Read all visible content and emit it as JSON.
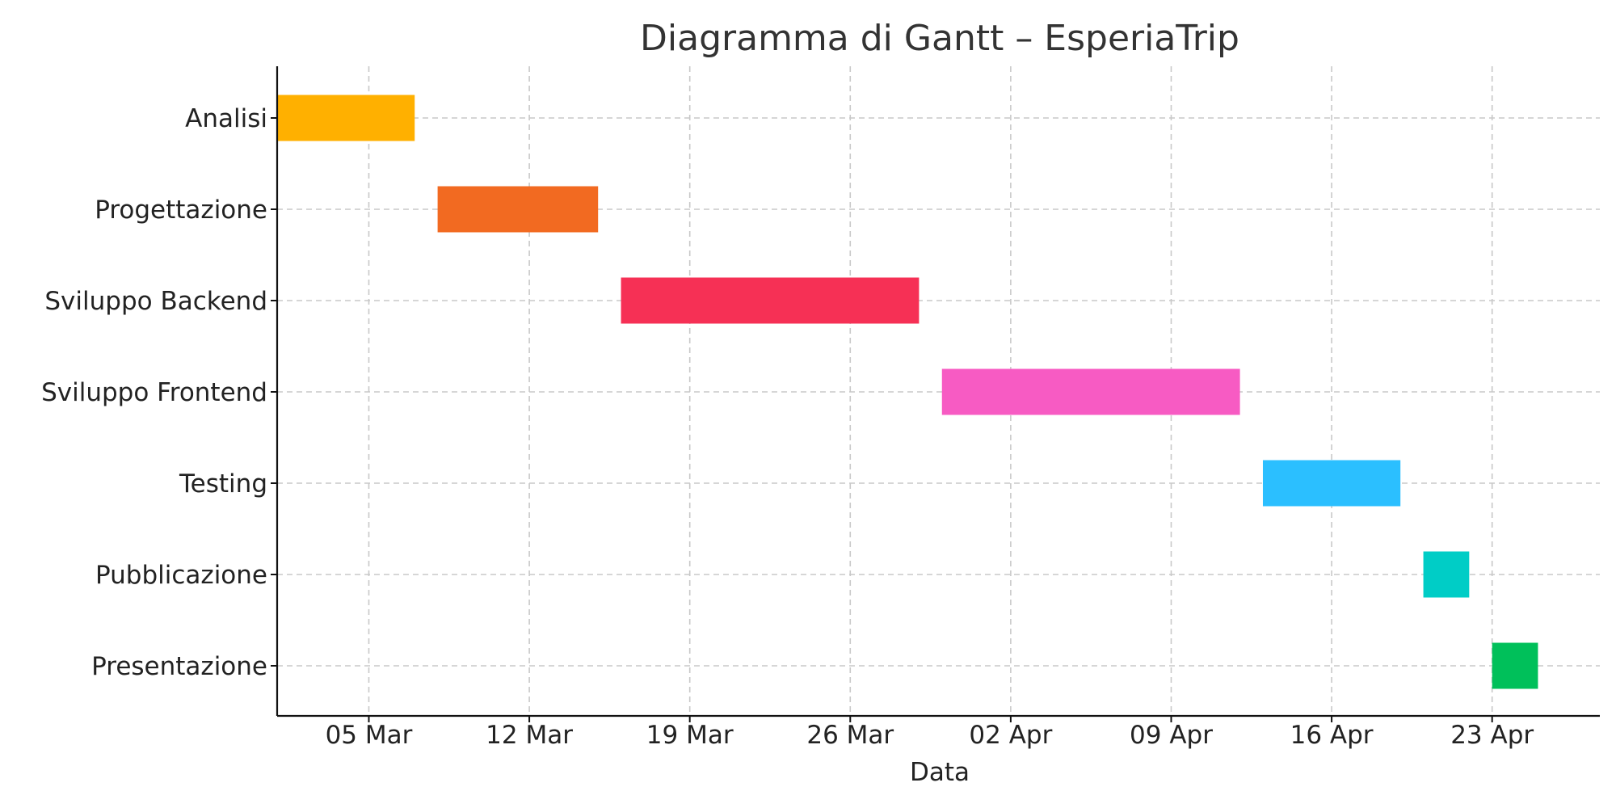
{
  "chart_data": {
    "type": "bar",
    "orientation": "horizontal-gantt",
    "title": "Diagramma di Gantt – EsperiaTrip",
    "xlabel": "Data",
    "ylabel": "",
    "grid": true,
    "legend": "none",
    "xlim": [
      "2025-03-01",
      "2025-04-30"
    ],
    "xticks": [
      {
        "date": "2025-03-05",
        "label": "05 Mar"
      },
      {
        "date": "2025-03-12",
        "label": "12 Mar"
      },
      {
        "date": "2025-03-19",
        "label": "19 Mar"
      },
      {
        "date": "2025-03-26",
        "label": "26 Mar"
      },
      {
        "date": "2025-04-02",
        "label": "02 Apr"
      },
      {
        "date": "2025-04-09",
        "label": "09 Apr"
      },
      {
        "date": "2025-04-16",
        "label": "16 Apr"
      },
      {
        "date": "2025-04-23",
        "label": "23 Apr"
      }
    ],
    "tasks": [
      {
        "name": "Analisi",
        "start": "2025-03-01",
        "end": "2025-03-07",
        "color": "#FFB000"
      },
      {
        "name": "Progettazione",
        "start": "2025-03-08",
        "end": "2025-03-15",
        "color": "#F26A21"
      },
      {
        "name": "Sviluppo Backend",
        "start": "2025-03-16",
        "end": "2025-03-29",
        "color": "#F63055"
      },
      {
        "name": "Sviluppo Frontend",
        "start": "2025-03-30",
        "end": "2025-04-12",
        "color": "#F75BC3"
      },
      {
        "name": "Testing",
        "start": "2025-04-13",
        "end": "2025-04-19",
        "color": "#2BBFFF"
      },
      {
        "name": "Pubblicazione",
        "start": "2025-04-20",
        "end": "2025-04-22",
        "color": "#00CDC6"
      },
      {
        "name": "Presentazione",
        "start": "2025-04-23",
        "end": "2025-04-25",
        "color": "#00C05A"
      }
    ]
  }
}
